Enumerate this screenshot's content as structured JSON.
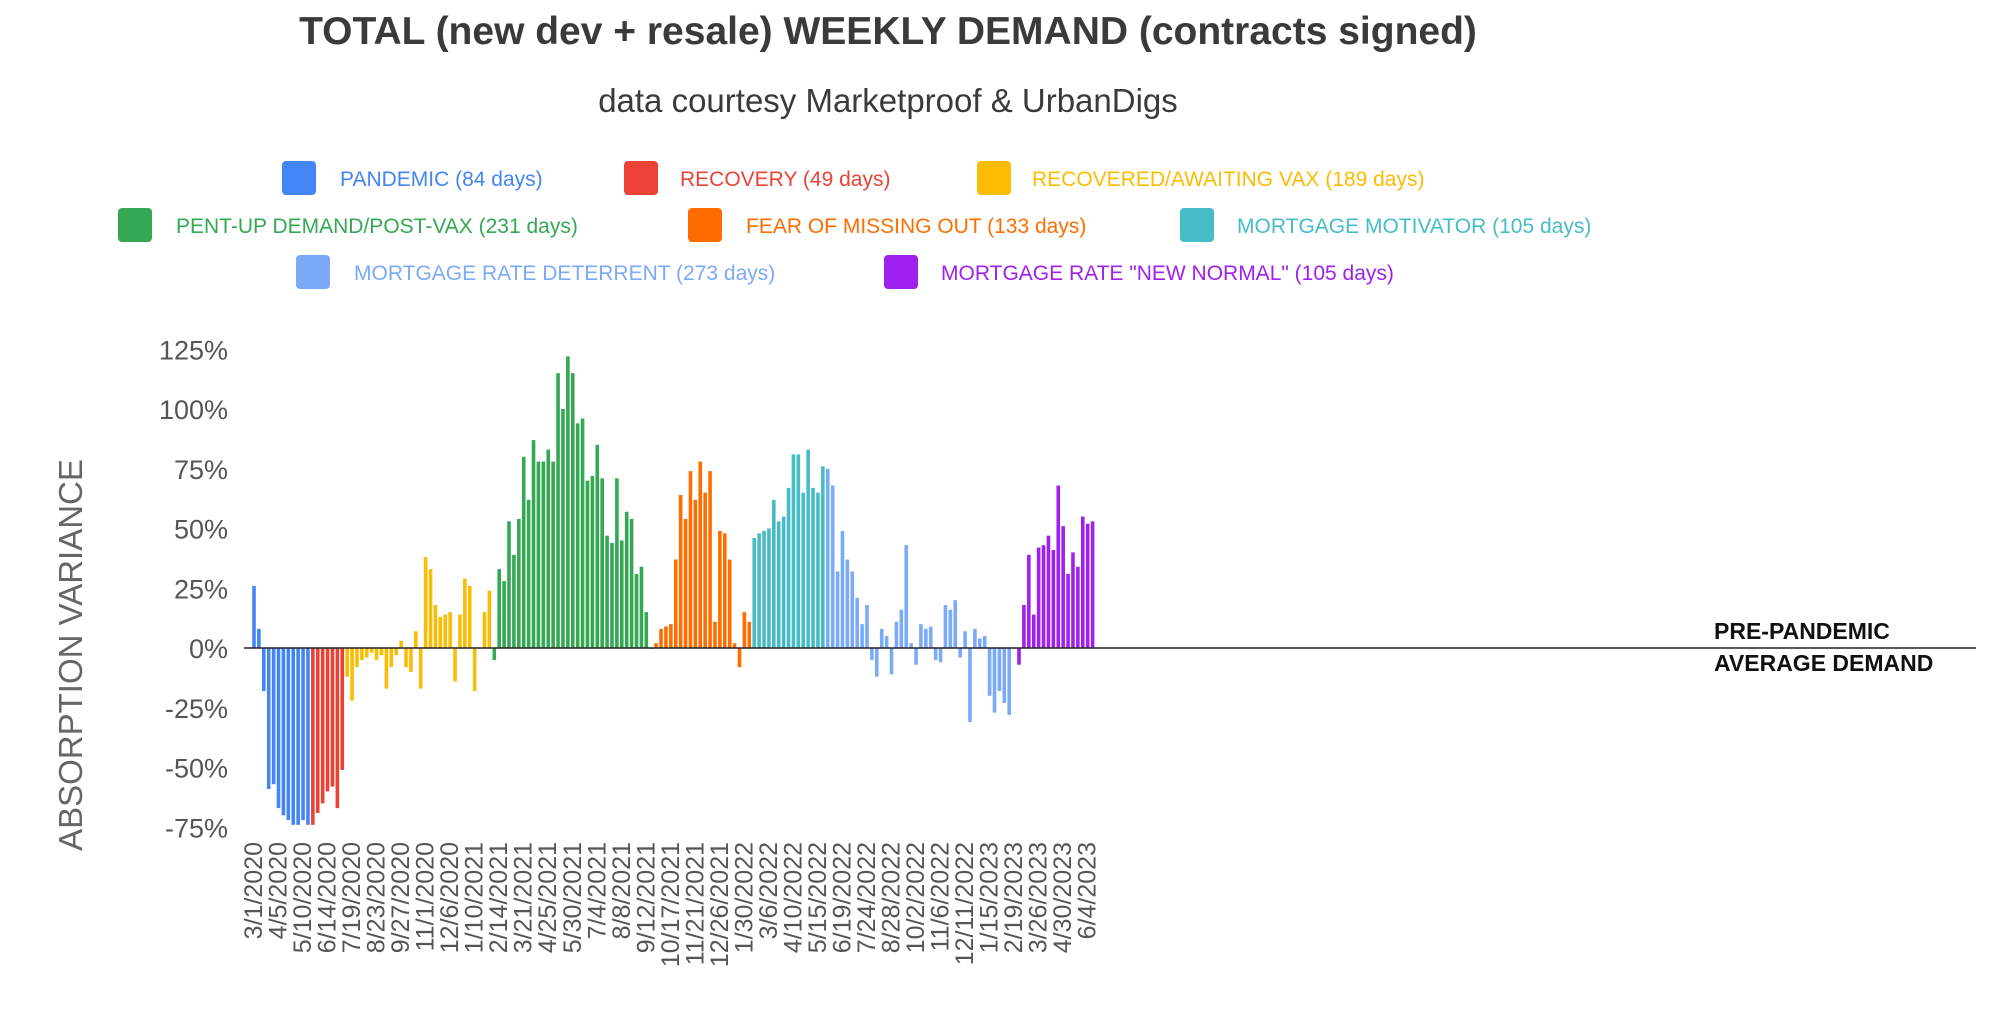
{
  "chart_data": {
    "type": "bar",
    "title": "TOTAL (new dev + resale) WEEKLY DEMAND (contracts signed)",
    "subtitle": "data courtesy Marketproof & UrbanDigs",
    "ylabel": "ABSORPTION VARIANCE",
    "xlabel": "",
    "ylim": [
      -75,
      125
    ],
    "y_ticks": [
      "125%",
      "100%",
      "75%",
      "50%",
      "25%",
      "0%",
      "-25%",
      "-50%",
      "-75%"
    ],
    "y_tick_values": [
      125,
      100,
      75,
      50,
      25,
      0,
      -25,
      -50,
      -75
    ],
    "x_tick_labels": [
      "3/1/2020",
      "4/5/2020",
      "5/10/2020",
      "6/14/2020",
      "7/19/2020",
      "8/23/2020",
      "9/27/2020",
      "11/1/2020",
      "12/6/2020",
      "1/10/2021",
      "2/14/2021",
      "3/21/2021",
      "4/25/2021",
      "5/30/2021",
      "7/4/2021",
      "8/8/2021",
      "9/12/2021",
      "10/17/2021",
      "11/21/2021",
      "12/26/2021",
      "1/30/2022",
      "3/6/2022",
      "4/10/2022",
      "5/15/2022",
      "6/19/2022",
      "7/24/2022",
      "8/28/2022",
      "10/2/2022",
      "11/6/2022",
      "12/11/2022",
      "1/15/2023",
      "2/19/2023",
      "3/26/2023",
      "4/30/2023",
      "6/4/2023"
    ],
    "grid": false,
    "legend_position": "top",
    "annotation": [
      "PRE-PANDEMIC",
      "AVERAGE DEMAND"
    ],
    "series": [
      {
        "name": "PANDEMIC (84 days)",
        "color": "#4285F4",
        "values": [
          26,
          8,
          -18,
          -59,
          -57,
          -67,
          -70,
          -72,
          -74,
          -74,
          -72,
          -74
        ]
      },
      {
        "name": "RECOVERY (49 days)",
        "color": "#EA4335",
        "values": [
          -74,
          -69,
          -65,
          -60,
          -58,
          -67,
          -51
        ]
      },
      {
        "name": "RECOVERED/AWAITING VAX (189 days)",
        "color": "#FBBC04",
        "values": [
          -12,
          -22,
          -8,
          -5,
          -4,
          -2,
          -5,
          -3,
          -17,
          -8,
          -3,
          3,
          -8,
          -10,
          7,
          -17,
          38,
          33,
          18,
          13,
          14,
          15,
          -14,
          14,
          29,
          26,
          -18,
          0,
          15,
          24
        ]
      },
      {
        "name": "PENT-UP DEMAND/POST-VAX (231 days)",
        "color": "#34A853",
        "values": [
          -5,
          33,
          28,
          53,
          39,
          54,
          80,
          62,
          87,
          78,
          78,
          83,
          78,
          115,
          100,
          122,
          115,
          94,
          96,
          70,
          72,
          85,
          71,
          47,
          44,
          71,
          45,
          57,
          54,
          31,
          34,
          15,
          0
        ]
      },
      {
        "name": "FEAR OF MISSING OUT (133 days)",
        "color": "#FF6D01",
        "values": [
          2,
          8,
          9,
          10,
          37,
          64,
          54,
          74,
          62,
          78,
          65,
          74,
          11,
          49,
          48,
          37,
          2,
          -8,
          15,
          11
        ]
      },
      {
        "name": "MORTGAGE MOTIVATOR (105 days)",
        "color": "#46BDC6",
        "values": [
          46,
          48,
          49,
          50,
          62,
          53,
          55,
          67,
          81,
          81,
          65,
          83,
          67,
          65,
          76
        ]
      },
      {
        "name": "MORTGAGE RATE DETERRENT (273 days)",
        "color": "#7BAAF7",
        "values": [
          75,
          68,
          32,
          49,
          37,
          32,
          21,
          10,
          18,
          -5,
          -12,
          8,
          5,
          -11,
          11,
          16,
          43,
          2,
          -7,
          10,
          8,
          9,
          -5,
          -6,
          18,
          16,
          20,
          -4,
          7,
          -31,
          8,
          4,
          5,
          -20,
          -27,
          -18,
          -23,
          -28,
          0
        ]
      },
      {
        "name": "MORTGAGE RATE \"NEW NORMAL\" (105 days)",
        "color": "#A020F0",
        "values": [
          -7,
          18,
          39,
          14,
          42,
          43,
          47,
          41,
          68,
          51,
          31,
          40,
          34,
          55,
          52,
          53
        ]
      }
    ]
  }
}
